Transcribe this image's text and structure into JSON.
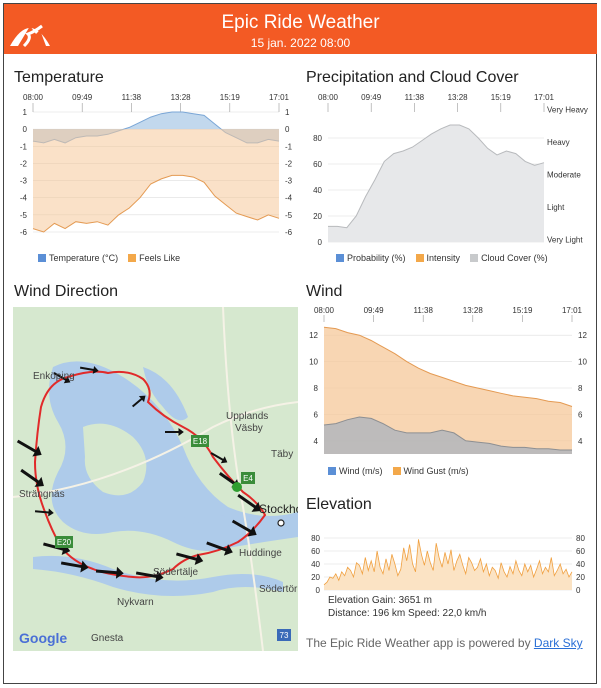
{
  "header": {
    "title": "Epic Ride Weather",
    "subtitle": "15 jan. 2022 08:00",
    "brand_color": "#f35a24"
  },
  "temperature": {
    "title": "Temperature",
    "legend": [
      "Temperature (°C)",
      "Feels Like"
    ]
  },
  "precipitation": {
    "title": "Precipitation and Cloud Cover",
    "legend": [
      "Probability (%)",
      "Intensity",
      "Cloud Cover (%)"
    ]
  },
  "wind_direction": {
    "title": "Wind Direction",
    "map_labels": {
      "enkoping": "Enköping",
      "strangnas": "Strängnäs",
      "upplands": "Upplands",
      "vasby": "Väsby",
      "taby": "Täby",
      "stockholm": "Stockho",
      "huddinge": "Huddinge",
      "sodertalje": "Södertälje",
      "nykvarn": "Nykvarn",
      "sodertorn": "Södertörr",
      "gnesta": "Gnesta",
      "google": "Google",
      "e18": "E18",
      "e4": "E4",
      "e20": "E20",
      "r73": "73"
    }
  },
  "wind": {
    "title": "Wind",
    "legend": [
      "Wind (m/s)",
      "Wind Gust (m/s)"
    ]
  },
  "elevation": {
    "title": "Elevation",
    "gain": "Elevation Gain: 3651 m",
    "distance_speed": "Distance: 196 km  Speed: 22,0 km/h"
  },
  "footer": {
    "text": "The Epic Ride Weather app is powered by ",
    "link": "Dark Sky"
  },
  "chart_data": [
    {
      "type": "area",
      "title": "Temperature",
      "x_ticks": [
        "08:00",
        "09:49",
        "11:38",
        "13:28",
        "15:19",
        "17:01"
      ],
      "ylim": [
        -6,
        1
      ],
      "y_ticks": [
        1,
        0,
        -1,
        -2,
        -3,
        -4,
        -5,
        -6
      ],
      "series": [
        {
          "name": "Temperature (°C)",
          "color": "#a8c8e6",
          "values": [
            -0.7,
            -0.8,
            -0.6,
            -0.8,
            -0.5,
            -0.4,
            -0.4,
            -0.3,
            -0.1,
            0.1,
            0.4,
            0.7,
            0.9,
            1.0,
            1.0,
            0.9,
            0.8,
            0.3,
            -0.2,
            -0.5,
            -0.8,
            -0.8,
            -0.6,
            -0.7
          ]
        },
        {
          "name": "Feels Like",
          "color": "#f6c89a",
          "values": [
            -5.8,
            -6.0,
            -5.5,
            -5.8,
            -5.4,
            -5.5,
            -5.4,
            -5.6,
            -5.0,
            -4.6,
            -4.0,
            -3.2,
            -2.9,
            -2.7,
            -2.7,
            -2.8,
            -3.1,
            -3.9,
            -4.4,
            -4.9,
            -5.1,
            -5.3,
            -5.0,
            -5.2
          ]
        }
      ]
    },
    {
      "type": "area",
      "title": "Precipitation and Cloud Cover",
      "x_ticks": [
        "08:00",
        "09:49",
        "11:38",
        "13:28",
        "15:19",
        "17:01"
      ],
      "ylim": [
        0,
        100
      ],
      "y_ticks": [
        0,
        20,
        40,
        60,
        80
      ],
      "y2_ticks": [
        "Very Light",
        "Light",
        "Moderate",
        "Heavy",
        "Very Heavy"
      ],
      "series": [
        {
          "name": "Probability (%)",
          "color": "#5b8fd6",
          "values": []
        },
        {
          "name": "Intensity",
          "color": "#f3a84a",
          "values": []
        },
        {
          "name": "Cloud Cover (%)",
          "color": "#c8cacc",
          "values": [
            12,
            12,
            11,
            20,
            35,
            48,
            62,
            68,
            70,
            73,
            78,
            83,
            87,
            90,
            90,
            87,
            80,
            72,
            67,
            70,
            68,
            62,
            59,
            61
          ]
        }
      ]
    },
    {
      "type": "area",
      "title": "Wind",
      "x_ticks": [
        "08:00",
        "09:49",
        "11:38",
        "13:28",
        "15:19",
        "17:01"
      ],
      "ylim": [
        3,
        13
      ],
      "y_ticks": [
        4,
        6,
        8,
        10,
        12
      ],
      "series": [
        {
          "name": "Wind (m/s)",
          "color": "#b6b8bb",
          "values": [
            5.2,
            5.3,
            5.6,
            5.8,
            5.7,
            5.3,
            4.8,
            4.6,
            4.6,
            4.6,
            4.8,
            4.6,
            4.0,
            3.9,
            3.8,
            3.6,
            3.5,
            3.5,
            3.4,
            3.4,
            3.3,
            3.3
          ]
        },
        {
          "name": "Wind Gust (m/s)",
          "color": "#f6c89a",
          "values": [
            12.6,
            12.5,
            12.2,
            12.0,
            11.6,
            11.1,
            10.6,
            10.0,
            9.5,
            9.1,
            8.8,
            8.5,
            8.2,
            8.0,
            7.8,
            7.6,
            7.4,
            7.3,
            7.2,
            7.0,
            6.9,
            6.6
          ]
        }
      ]
    },
    {
      "type": "area",
      "title": "Elevation",
      "ylim": [
        0,
        80
      ],
      "y_ticks": [
        0,
        20,
        40,
        60,
        80
      ],
      "series": [
        {
          "name": "Elevation",
          "color": "#f3a84a",
          "values": [
            8,
            12,
            20,
            18,
            25,
            15,
            28,
            22,
            35,
            30,
            20,
            42,
            38,
            25,
            50,
            30,
            45,
            28,
            60,
            35,
            25,
            48,
            30,
            55,
            40,
            22,
            32,
            65,
            45,
            70,
            40,
            28,
            78,
            55,
            38,
            60,
            42,
            30,
            72,
            50,
            35,
            58,
            40,
            62,
            30,
            45,
            55,
            38,
            25,
            50,
            42,
            30,
            35,
            48,
            28,
            40,
            22,
            35,
            30,
            18,
            42,
            28,
            20,
            36,
            25,
            45,
            30,
            22,
            40,
            28,
            38,
            20,
            32,
            45,
            25,
            35,
            28,
            50,
            22,
            30,
            40,
            25,
            32,
            20,
            28
          ]
        }
      ]
    }
  ]
}
